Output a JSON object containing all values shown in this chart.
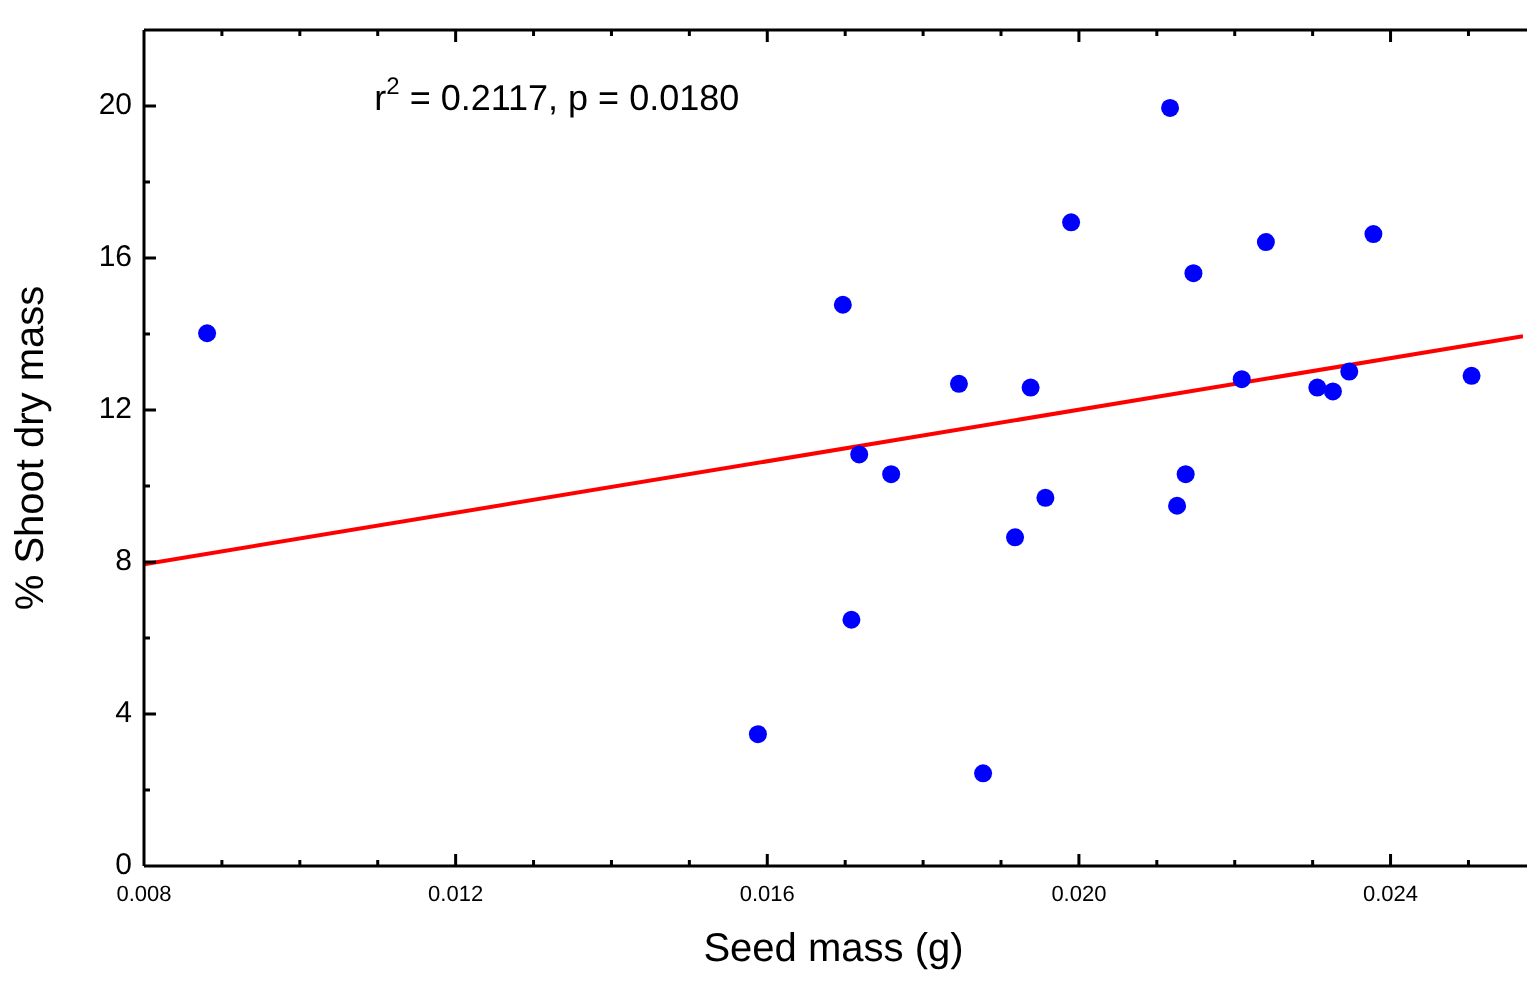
{
  "chart_data": {
    "type": "scatter",
    "xlabel": "Seed mass (g)",
    "ylabel": "% Shoot dry mass",
    "annotations": [
      "r$^{2}$ = 0.2117, p = 0.0180"
    ],
    "xlim": [
      0.008,
      0.0257
    ],
    "xticks": [
      0.008,
      {
        "value": 0.009,
        "label": null
      },
      {
        "value": 0.01,
        "label": null
      },
      {
        "value": 0.011,
        "label": null
      },
      0.012,
      {
        "value": 0.013,
        "label": null
      },
      {
        "value": 0.014,
        "label": null
      },
      {
        "value": 0.015,
        "label": null
      },
      0.016,
      {
        "value": 0.017,
        "label": null
      },
      {
        "value": 0.018,
        "label": null
      },
      {
        "value": 0.019,
        "label": null
      },
      {
        "value": 0.02,
        "label": "0.020"
      },
      {
        "value": 0.021,
        "label": null
      },
      {
        "value": 0.022,
        "label": null
      },
      {
        "value": 0.023,
        "label": null
      },
      0.024,
      {
        "value": 0.025,
        "label": null
      }
    ],
    "ylim": [
      0,
      22
    ],
    "yticks": [
      0,
      {
        "value": 2,
        "label": null
      },
      4,
      {
        "value": 6,
        "label": null
      },
      8,
      {
        "value": 10,
        "label": null
      },
      12,
      {
        "value": 14,
        "label": null
      },
      16,
      {
        "value": 18,
        "label": null
      },
      20
    ],
    "grid": false,
    "legend": false,
    "marker": "circle",
    "series": [
      {
        "color": "#0000ff",
        "x": [
          0.00881,
          0.01588,
          0.01697,
          0.01708,
          0.01718,
          0.01759,
          0.01846,
          0.01877,
          0.01918,
          0.01938,
          0.01957,
          0.0199,
          0.02117,
          0.02126,
          0.02137,
          0.02147,
          0.02209,
          0.0224,
          0.02306,
          0.02326,
          0.02347,
          0.02378,
          0.02504
        ],
        "values": [
          14.02,
          3.47,
          14.77,
          6.48,
          10.83,
          10.31,
          12.69,
          2.44,
          8.65,
          12.59,
          9.69,
          16.94,
          19.95,
          9.48,
          10.31,
          15.6,
          12.81,
          16.42,
          12.59,
          12.49,
          13.01,
          16.63,
          12.9
        ]
      },
      {
        "type": "line",
        "color": "#ff0000",
        "marker": "none",
        "line_style": "solid",
        "x": [
          0.008,
          0.0257
        ],
        "values": [
          7.94,
          13.94
        ]
      }
    ]
  }
}
